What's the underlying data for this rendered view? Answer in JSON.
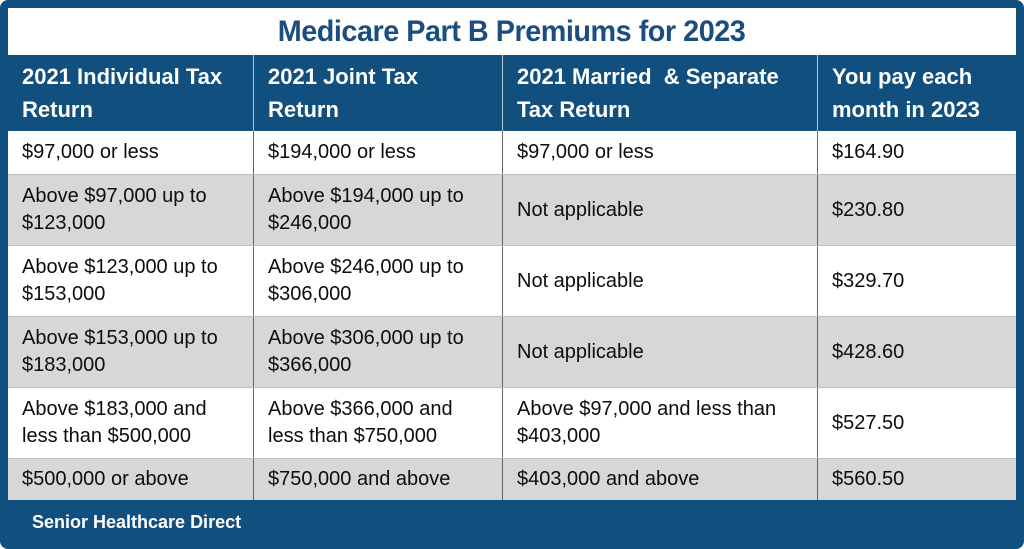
{
  "chart_data": {
    "type": "table",
    "title": "Medicare Part B Premiums for 2023",
    "columns": [
      "2021 Individual Tax Return",
      "2021 Joint Tax Return",
      "2021 Married  & Separate Tax Return",
      "You pay each month in 2023"
    ],
    "rows": [
      [
        "$97,000 or less",
        "$194,000 or less",
        "$97,000 or less",
        "$164.90"
      ],
      [
        "Above $97,000 up to $123,000",
        "Above $194,000 up to $246,000",
        "Not applicable",
        "$230.80"
      ],
      [
        "Above $123,000 up to $153,000",
        "Above $246,000 up to $306,000",
        "Not applicable",
        "$329.70"
      ],
      [
        "Above $153,000 up to $183,000",
        "Above $306,000 up to $366,000",
        "Not applicable",
        "$428.60"
      ],
      [
        "Above $183,000 and less than $500,000",
        "Above $366,000 and less than $750,000",
        "Above $97,000 and less than $403,000",
        "$527.50"
      ],
      [
        "$500,000 or above",
        "$750,000 and above",
        "$403,000 and above",
        "$560.50"
      ]
    ],
    "layout": {
      "alternating_row_shading": "rows 2,4,6 gray",
      "legend_position": "none",
      "grid": "on"
    }
  },
  "footer": {
    "brand": "Senior Healthcare Direct"
  },
  "colors": {
    "brand_blue": "#114F7E",
    "row_alt_gray": "#D7D7D7",
    "title_text": "#1B4E7E"
  }
}
